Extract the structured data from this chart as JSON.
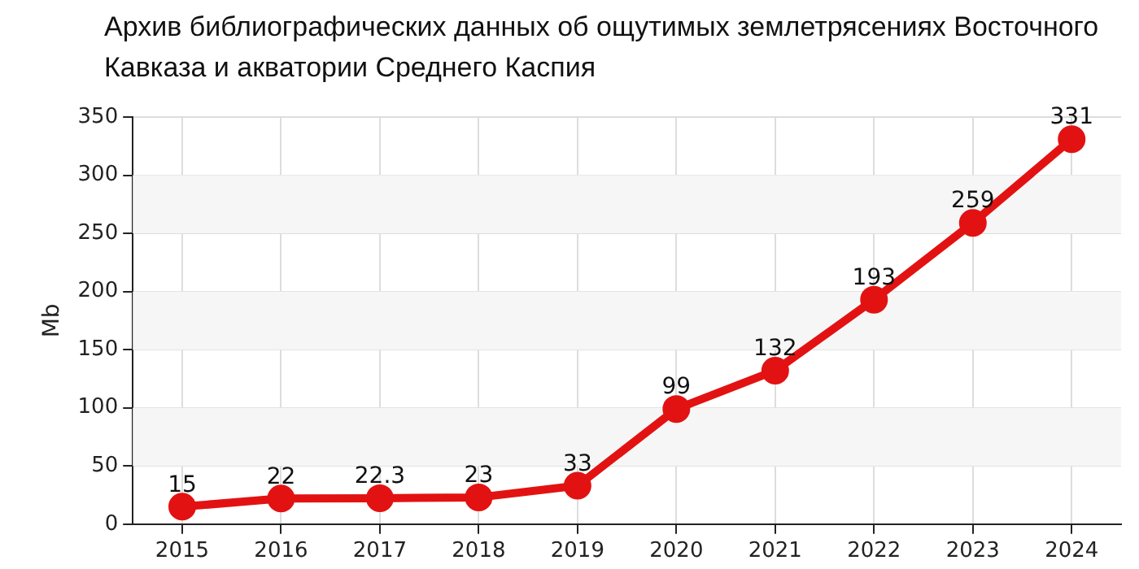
{
  "chart_data": {
    "type": "line",
    "title": "Архив библиографических данных об ощутимых землетрясениях Восточного Кавказа и акватории Среднего Каспия",
    "ylabel": "Mb",
    "categories": [
      "2015",
      "2016",
      "2017",
      "2018",
      "2019",
      "2020",
      "2021",
      "2022",
      "2023",
      "2024"
    ],
    "series": [
      {
        "color": "#e31212",
        "values": [
          15,
          22,
          22.3,
          23,
          33,
          99,
          132,
          193,
          259,
          331
        ]
      }
    ],
    "ylim": [
      0,
      350
    ],
    "yticks": [
      0,
      50,
      100,
      150,
      200,
      250,
      300,
      350
    ],
    "bands": [
      {
        "axis": "y",
        "from": 50,
        "to": 100,
        "color": "#f6f6f6"
      },
      {
        "axis": "y",
        "from": 150,
        "to": 200,
        "color": "#f6f6f6"
      },
      {
        "axis": "y",
        "from": 250,
        "to": 300,
        "color": "#f6f6f6"
      }
    ],
    "grid": true,
    "marker": "circle",
    "line_style": "solid",
    "data_labels": true,
    "legend": false
  }
}
